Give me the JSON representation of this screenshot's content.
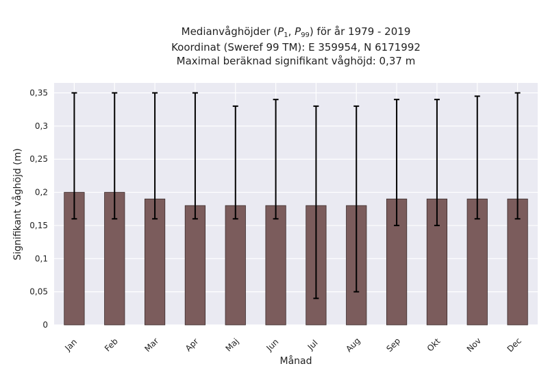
{
  "chart_data": {
    "type": "bar",
    "title_lines": [
      "Medianvåghöjder (P1, P99) för år 1979 - 2019",
      "Koordinat (Sweref 99 TM): E 359954, N 6171992",
      "Maximal beräknad signifikant våghöjd: 0,37 m"
    ],
    "title_math": {
      "main": "Medianvåghöjder (",
      "p": "P",
      "sub1": "1",
      "sep": ", ",
      "sub99": "99",
      "end": ") för år 1979 - 2019"
    },
    "xlabel": "Månad",
    "ylabel": "Signifikant våghöjd (m)",
    "categories": [
      "Jan",
      "Feb",
      "Mar",
      "Apr",
      "Maj",
      "Jun",
      "Jul",
      "Aug",
      "Sep",
      "Okt",
      "Nov",
      "Dec"
    ],
    "values": [
      0.2,
      0.2,
      0.19,
      0.18,
      0.18,
      0.18,
      0.18,
      0.18,
      0.19,
      0.19,
      0.19,
      0.19
    ],
    "p1": [
      0.16,
      0.16,
      0.16,
      0.16,
      0.16,
      0.16,
      0.04,
      0.05,
      0.15,
      0.15,
      0.16,
      0.16
    ],
    "p99": [
      0.35,
      0.35,
      0.35,
      0.35,
      0.33,
      0.34,
      0.33,
      0.33,
      0.34,
      0.34,
      0.345,
      0.35
    ],
    "yticks": [
      0,
      0.05,
      0.1,
      0.15,
      0.2,
      0.25,
      0.3,
      0.35
    ],
    "ytick_labels": [
      "0",
      "0,05",
      "0,1",
      "0,15",
      "0,2",
      "0,25",
      "0,3",
      "0,35"
    ],
    "ylim": [
      0,
      0.365
    ],
    "grid": true,
    "colors": {
      "bar": "#7b5c5c",
      "bar_edge": "#3a2a2a",
      "error": "#000000",
      "plot_bg": "#eaeaf2",
      "grid": "#ffffff"
    }
  }
}
